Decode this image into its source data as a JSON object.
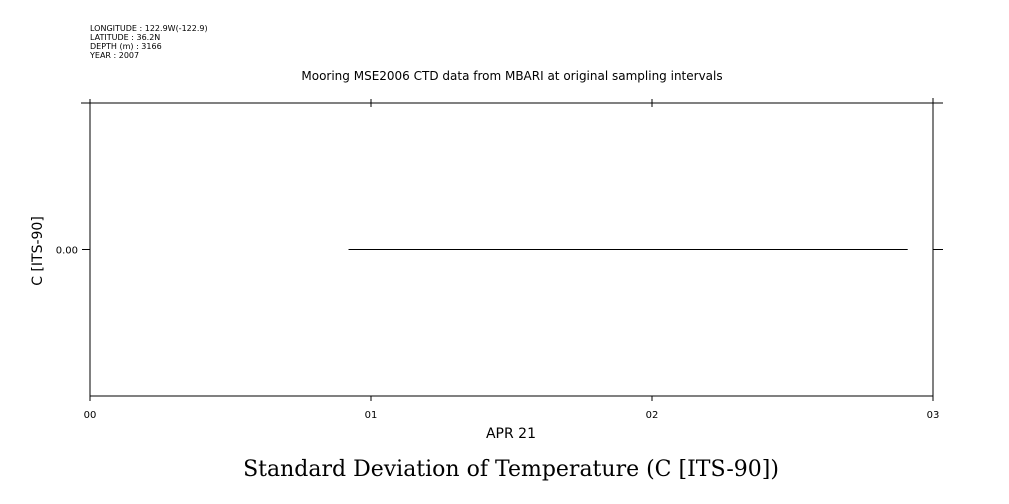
{
  "header": {
    "meta_lines": [
      "LONGITUDE : 122.9W(-122.9)",
      "LATITUDE : 36.2N",
      "DEPTH (m) : 3166",
      "YEAR : 2007"
    ],
    "title": "Mooring MSE2006 CTD data from MBARI at original sampling intervals"
  },
  "chart_data": {
    "type": "line",
    "title": "Mooring MSE2006 CTD data from MBARI at original sampling intervals",
    "xlabel": "APR 21",
    "ylabel": "C [ITS-90]",
    "variable_label": "Standard Deviation of Temperature (C [ITS-90])",
    "x_unit": "hour of APR 21",
    "xlim": [
      0,
      3
    ],
    "x_ticks": [
      0,
      1,
      2,
      3
    ],
    "x_tick_labels": [
      "00",
      "01",
      "02",
      "03"
    ],
    "ylim": [
      -1,
      1
    ],
    "y_ticks": [
      0
    ],
    "y_tick_labels": [
      "0.00"
    ],
    "grid": false,
    "series": [
      {
        "x": [
          0.92,
          2.91
        ],
        "y": [
          0.0,
          0.0
        ]
      }
    ]
  }
}
